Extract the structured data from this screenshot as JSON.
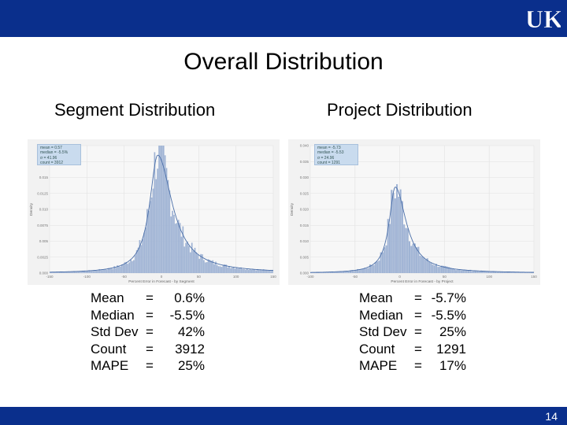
{
  "header": {
    "logo_text": "UK"
  },
  "slide": {
    "title": "Overall Distribution",
    "page_number": "14"
  },
  "left": {
    "subtitle": "Segment Distribution",
    "legend": [
      "mean = 0.57",
      "median = -5.5%",
      "σ = 41.96",
      "count = 3912"
    ],
    "stats": [
      {
        "label": "Mean",
        "sep": "=",
        "value": "0.6%"
      },
      {
        "label": "Median",
        "sep": "=",
        "value": "-5.5%"
      },
      {
        "label": "Std Dev",
        "sep": "=",
        "value": "42%"
      },
      {
        "label": "Count",
        "sep": "=",
        "value": "3912"
      },
      {
        "label": "MAPE",
        "sep": "=",
        "value": "25%"
      }
    ]
  },
  "right": {
    "subtitle": "Project Distribution",
    "legend": [
      "mean = -5.73",
      "median = -5.53",
      "σ = 24.96",
      "count = 1291"
    ],
    "stats": [
      {
        "label": "Mean",
        "sep": "=",
        "value": "-5.7%"
      },
      {
        "label": "Median",
        "sep": "=",
        "value": "-5.5%"
      },
      {
        "label": "Std Dev",
        "sep": "=",
        "value": "25%"
      },
      {
        "label": "Count",
        "sep": "=",
        "value": "1291"
      },
      {
        "label": "MAPE",
        "sep": "=",
        "value": "17%"
      }
    ]
  },
  "chart_data": [
    {
      "type": "bar",
      "xlabel": "Percent Error in Forecast - by Segment",
      "ylabel": "Density",
      "xlim": [
        -150,
        150
      ],
      "ylim": [
        0,
        0.02
      ],
      "x_ticks": [
        "-150",
        "-100",
        "-50",
        "0",
        "50",
        "100",
        "150"
      ],
      "y_ticks": [
        "0.000",
        "0.0025",
        "0.005",
        "0.0075",
        "0.010",
        "0.0125",
        "0.015",
        "0.0175",
        "0.020"
      ],
      "mode": -5,
      "peak": 0.0185,
      "spread": 22,
      "bar_color": "#9fb3d4",
      "line_color": "#4a6ea8"
    },
    {
      "type": "bar",
      "xlabel": "Percent Error in Forecast - by Project",
      "ylabel": "Density",
      "xlim": [
        -100,
        150
      ],
      "ylim": [
        0,
        0.04
      ],
      "x_ticks": [
        "-100",
        "-50",
        "0",
        "50",
        "100",
        "150"
      ],
      "y_ticks": [
        "0.000",
        "0.005",
        "0.010",
        "0.015",
        "0.020",
        "0.025",
        "0.030",
        "0.035",
        "0.040"
      ],
      "mode": -5,
      "peak": 0.027,
      "spread": 14,
      "bar_color": "#9fb3d4",
      "line_color": "#4a6ea8"
    }
  ]
}
